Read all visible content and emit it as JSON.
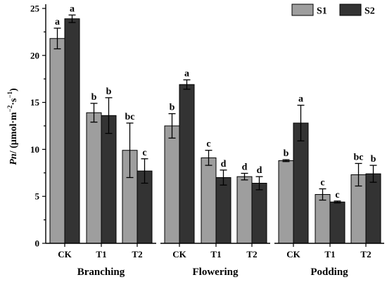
{
  "chart_data": {
    "type": "bar",
    "ylabel": {
      "italic": "Pn",
      "rest": "/ (μmol·m",
      "exp1": "−2",
      "mid": "·s",
      "exp2": "−1",
      "end": ")"
    },
    "ylim": [
      0,
      25
    ],
    "yticks": [
      "0",
      "5",
      "10",
      "15",
      "20",
      "25"
    ],
    "legend_position": "top-right",
    "colors": {
      "S1": "#9e9e9e",
      "S2": "#333333"
    },
    "series_names": [
      "S1",
      "S2"
    ],
    "groups": [
      {
        "name": "Branching",
        "categories": [
          {
            "label": "CK",
            "S1": {
              "value": 21.8,
              "err": 1.1,
              "sig": "a"
            },
            "S2": {
              "value": 23.9,
              "err": 0.4,
              "sig": "a"
            }
          },
          {
            "label": "T1",
            "S1": {
              "value": 13.9,
              "err": 1.0,
              "sig": "b"
            },
            "S2": {
              "value": 13.6,
              "err": 1.9,
              "sig": "b"
            }
          },
          {
            "label": "T2",
            "S1": {
              "value": 9.9,
              "err": 2.9,
              "sig": "bc"
            },
            "S2": {
              "value": 7.7,
              "err": 1.3,
              "sig": "c"
            }
          }
        ]
      },
      {
        "name": "Flowering",
        "categories": [
          {
            "label": "CK",
            "S1": {
              "value": 12.5,
              "err": 1.3,
              "sig": "b"
            },
            "S2": {
              "value": 16.9,
              "err": 0.5,
              "sig": "a"
            }
          },
          {
            "label": "T1",
            "S1": {
              "value": 9.1,
              "err": 0.8,
              "sig": "c"
            },
            "S2": {
              "value": 7.0,
              "err": 0.8,
              "sig": "d"
            }
          },
          {
            "label": "T2",
            "S1": {
              "value": 7.1,
              "err": 0.35,
              "sig": "d"
            },
            "S2": {
              "value": 6.4,
              "err": 0.7,
              "sig": "d"
            }
          }
        ]
      },
      {
        "name": "Podding",
        "categories": [
          {
            "label": "CK",
            "S1": {
              "value": 8.8,
              "err": 0.1,
              "sig": "b"
            },
            "S2": {
              "value": 12.8,
              "err": 1.9,
              "sig": "a"
            }
          },
          {
            "label": "T1",
            "S1": {
              "value": 5.2,
              "err": 0.6,
              "sig": "c"
            },
            "S2": {
              "value": 4.4,
              "err": 0.1,
              "sig": "c"
            }
          },
          {
            "label": "T2",
            "S1": {
              "value": 7.3,
              "err": 1.2,
              "sig": "bc"
            },
            "S2": {
              "value": 7.4,
              "err": 0.9,
              "sig": "b"
            }
          }
        ]
      }
    ]
  }
}
